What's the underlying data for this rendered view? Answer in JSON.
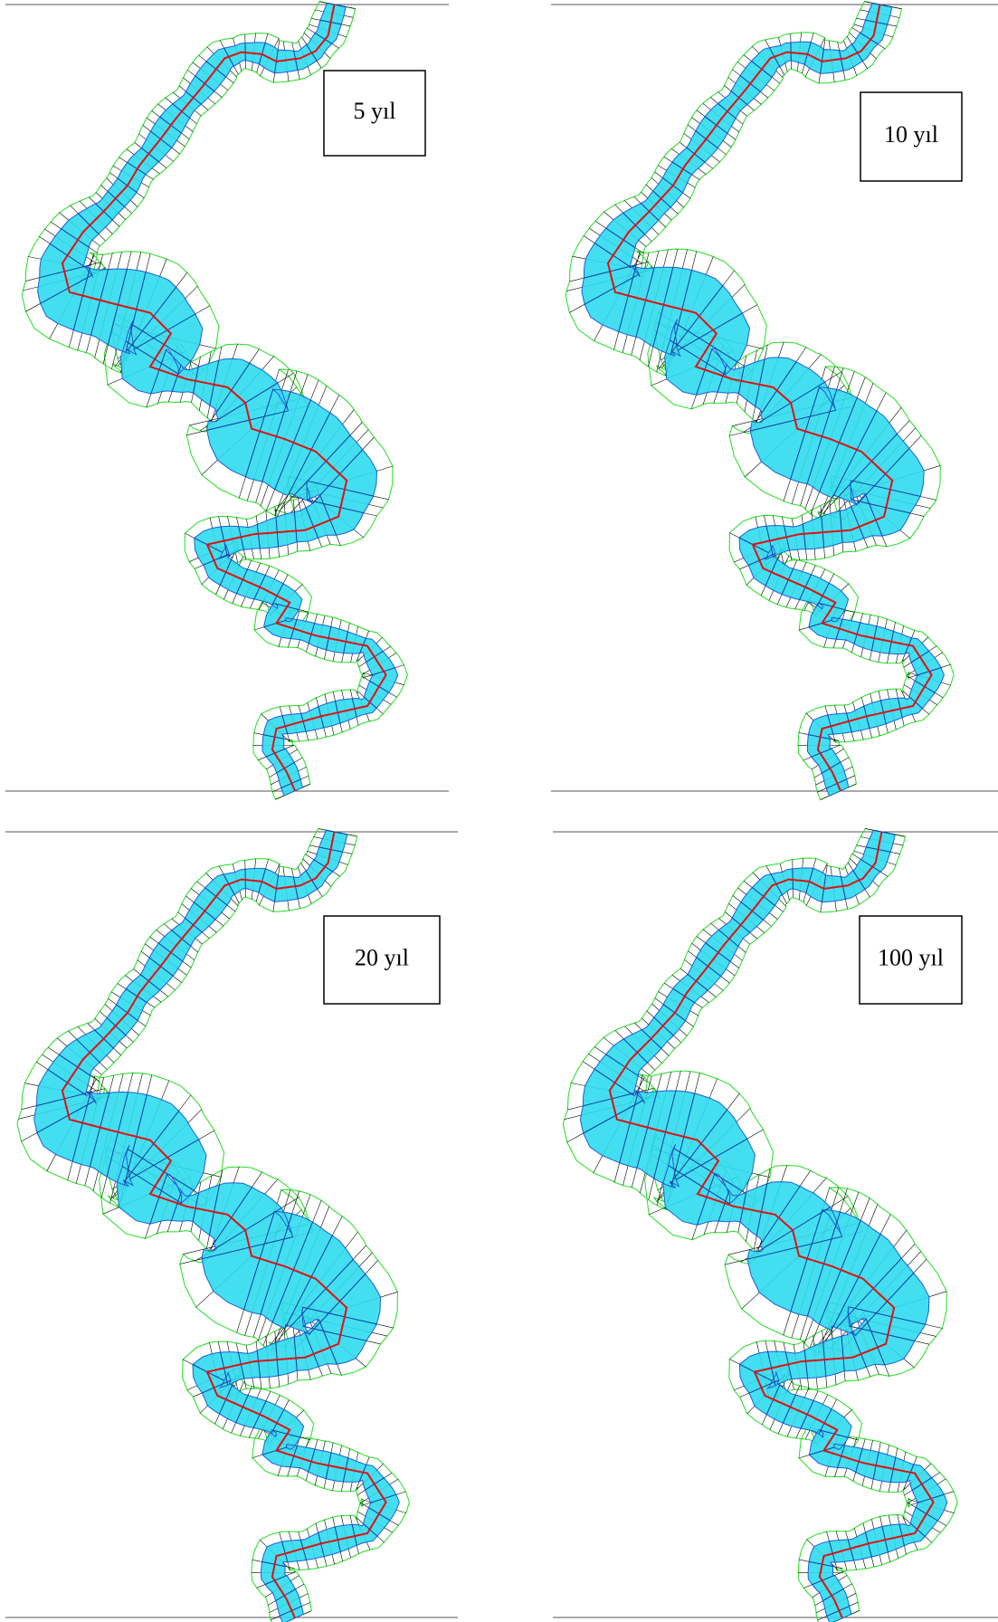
{
  "panels": [
    {
      "label": "5 yıl"
    },
    {
      "label": "10 yıl"
    },
    {
      "label": "20 yıl"
    },
    {
      "label": "100 yıl"
    }
  ]
}
